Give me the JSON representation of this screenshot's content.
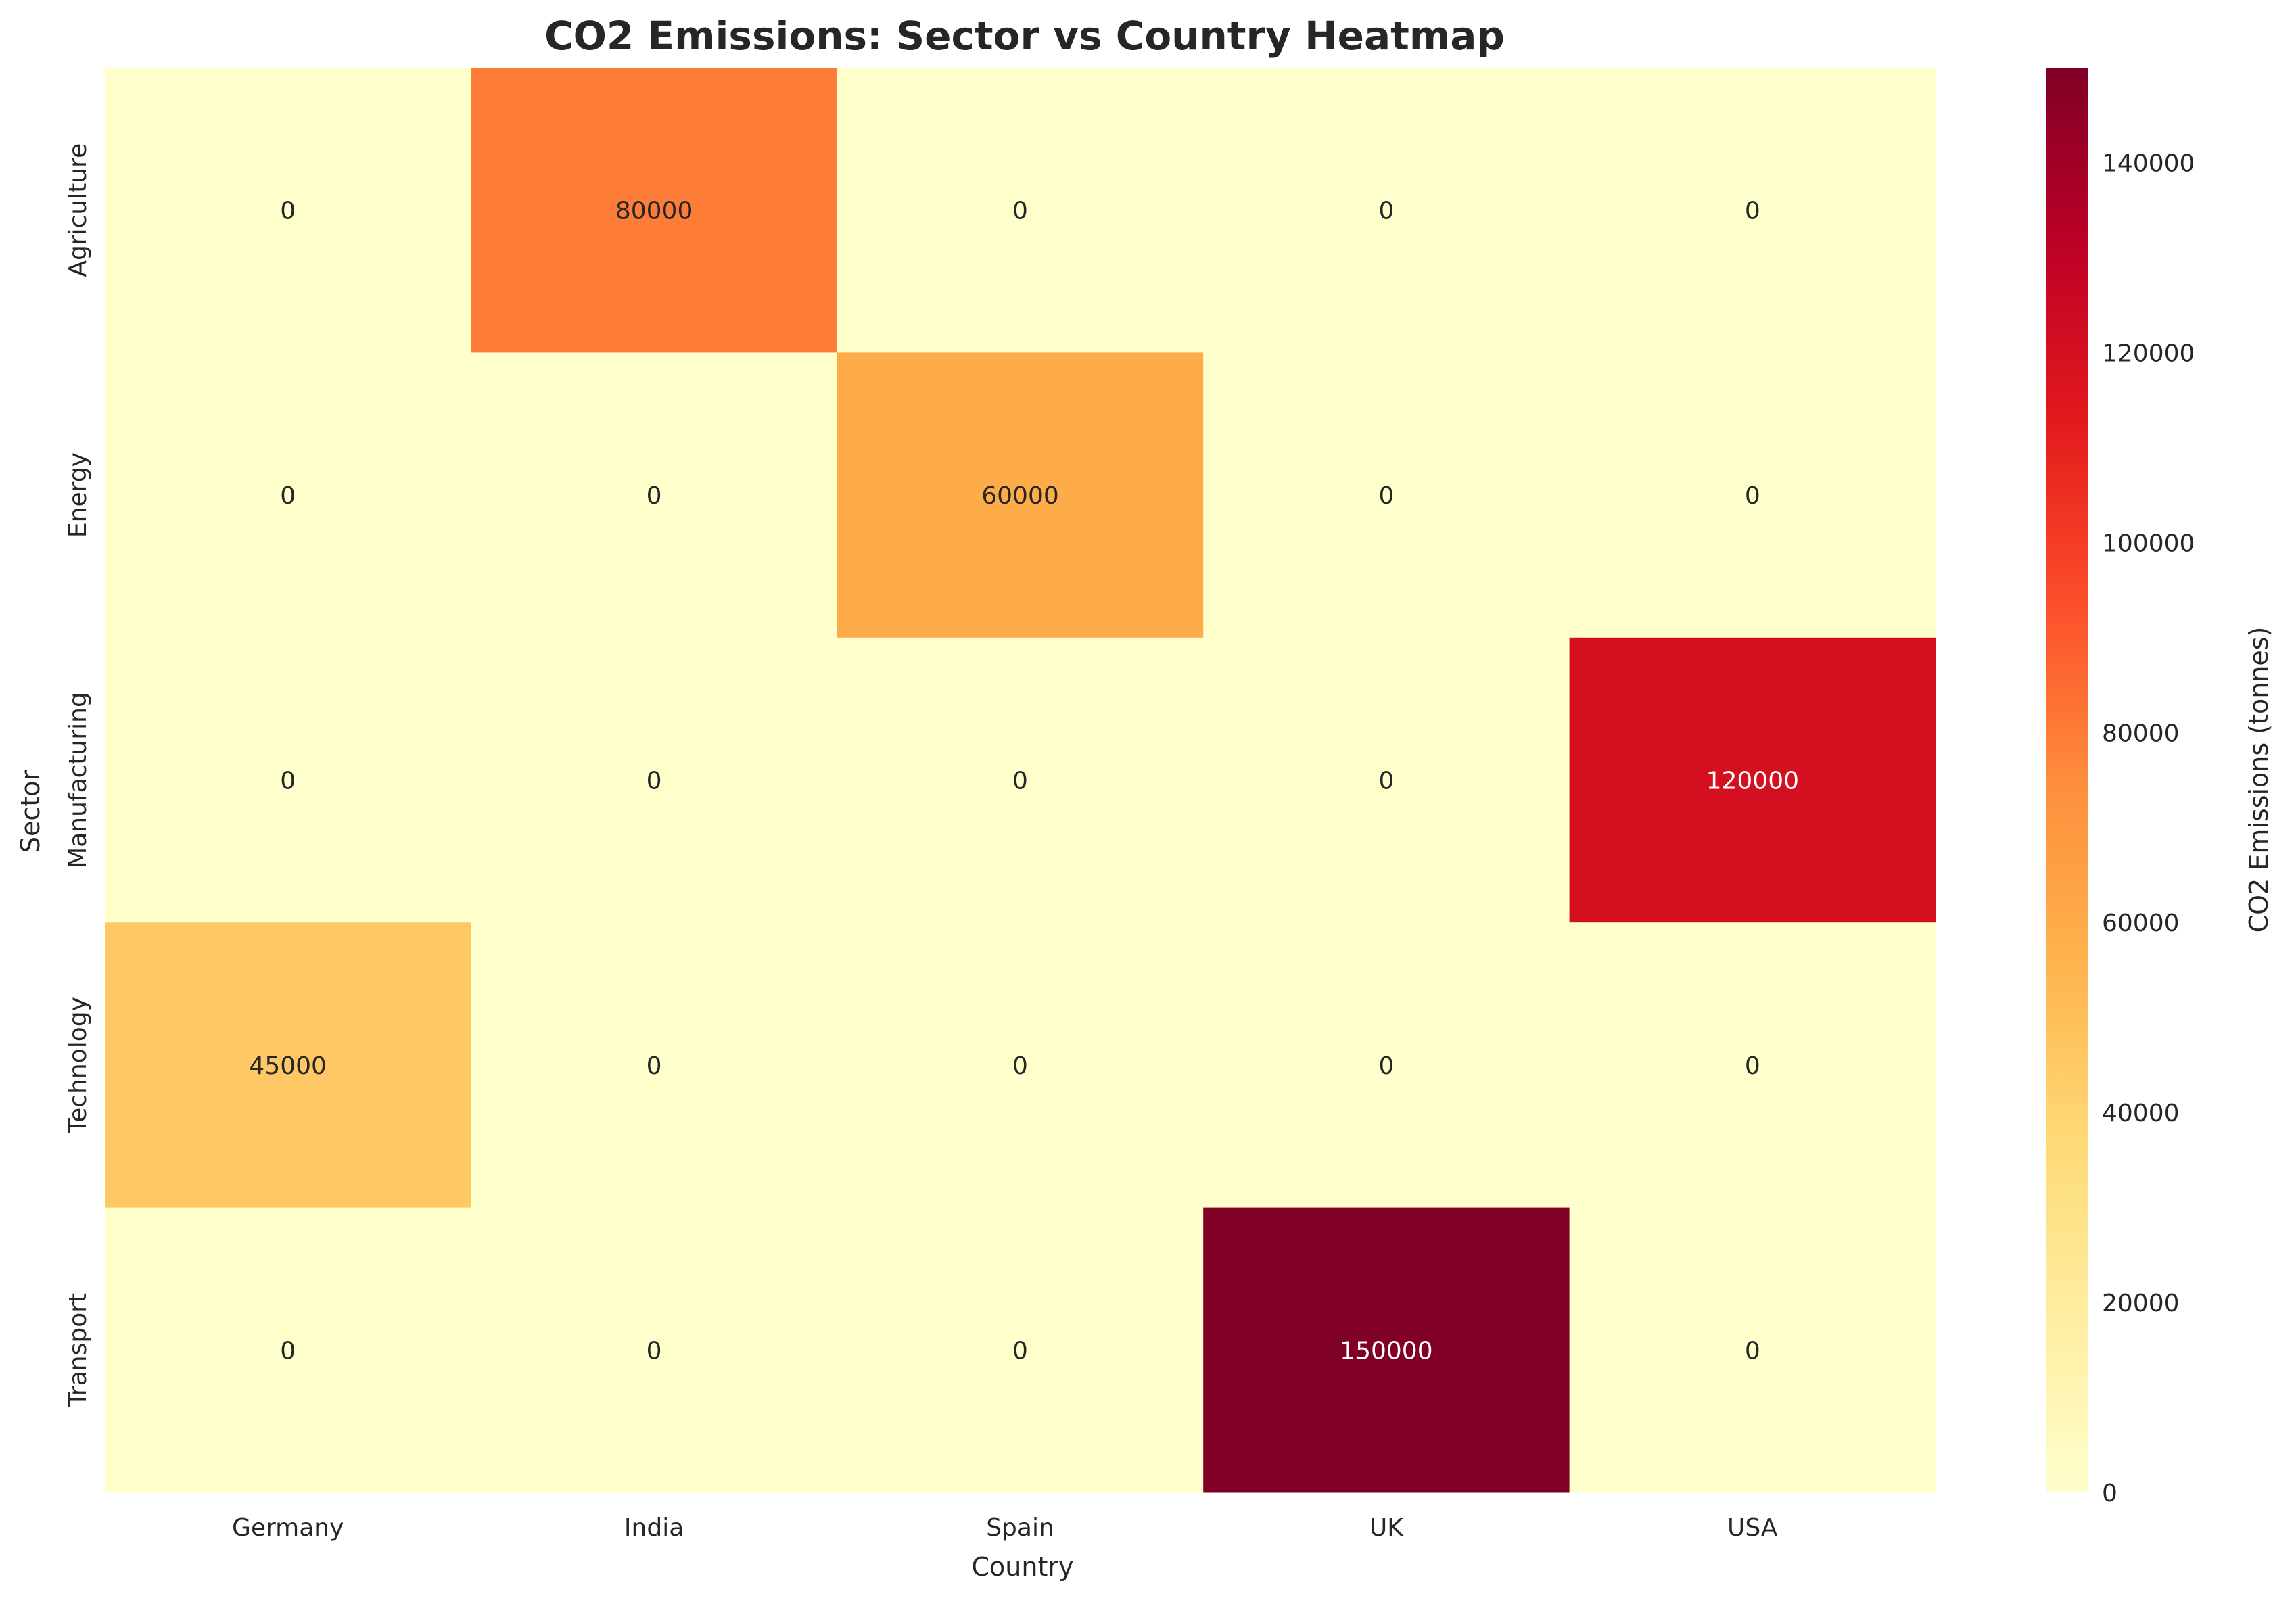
{
  "chart_data": {
    "type": "heatmap",
    "title": "CO2 Emissions: Sector vs Country Heatmap",
    "xlabel": "Country",
    "ylabel": "Sector",
    "x_categories": [
      "Germany",
      "India",
      "Spain",
      "UK",
      "USA"
    ],
    "y_categories": [
      "Agriculture",
      "Energy",
      "Manufacturing",
      "Technology",
      "Transport"
    ],
    "values": [
      [
        0,
        80000,
        0,
        0,
        0
      ],
      [
        0,
        0,
        60000,
        0,
        0
      ],
      [
        0,
        0,
        0,
        0,
        120000
      ],
      [
        45000,
        0,
        0,
        0,
        0
      ],
      [
        0,
        0,
        0,
        150000,
        0
      ]
    ],
    "colorbar": {
      "label": "CO2 Emissions (tonnes)",
      "range": [
        0,
        150000
      ],
      "ticks": [
        0,
        20000,
        40000,
        60000,
        80000,
        100000,
        120000,
        140000
      ],
      "colormap": "YlOrRd"
    },
    "grid": false,
    "annotations": true
  }
}
